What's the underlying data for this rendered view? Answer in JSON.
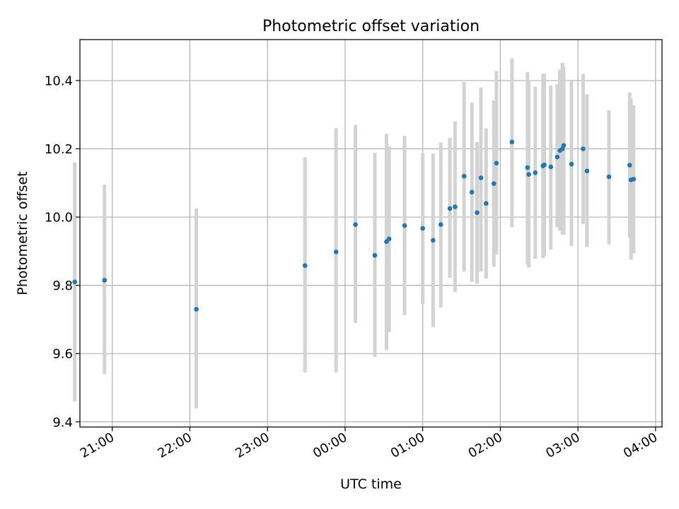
{
  "chart_data": {
    "type": "scatter",
    "title": "Photometric offset variation",
    "xlabel": "UTC time",
    "ylabel": "Photometric offset",
    "x_axis": "time (hours, UTC)",
    "xlim": [
      "20:35",
      "04:05"
    ],
    "ylim": [
      9.385,
      10.52
    ],
    "x_ticks": [
      "21:00",
      "22:00",
      "23:00",
      "00:00",
      "01:00",
      "02:00",
      "03:00",
      "04:00"
    ],
    "y_ticks": [
      "9.4",
      "9.6",
      "9.8",
      "10.0",
      "10.2",
      "10.4"
    ],
    "grid": true,
    "colors": {
      "point": "#1f77b4",
      "errorbar": "#d3d3d3",
      "grid": "#b0b0b0"
    },
    "points": [
      {
        "x": "20:31",
        "y": 9.81,
        "err_low": 9.46,
        "err_high": 10.16
      },
      {
        "x": "20:54",
        "y": 9.815,
        "err_low": 9.54,
        "err_high": 10.095
      },
      {
        "x": "22:05",
        "y": 9.73,
        "err_low": 9.44,
        "err_high": 10.025
      },
      {
        "x": "23:29",
        "y": 9.858,
        "err_low": 9.545,
        "err_high": 10.175
      },
      {
        "x": "23:53",
        "y": 9.898,
        "err_low": 9.545,
        "err_high": 10.26
      },
      {
        "x": "00:08",
        "y": 9.978,
        "err_low": 9.69,
        "err_high": 10.27
      },
      {
        "x": "00:23",
        "y": 9.888,
        "err_low": 9.59,
        "err_high": 10.188
      },
      {
        "x": "00:32",
        "y": 9.928,
        "err_low": 9.61,
        "err_high": 10.244
      },
      {
        "x": "00:34",
        "y": 9.936,
        "err_low": 9.663,
        "err_high": 10.207
      },
      {
        "x": "00:46",
        "y": 9.975,
        "err_low": 9.713,
        "err_high": 10.238
      },
      {
        "x": "01:00",
        "y": 9.967,
        "err_low": 9.745,
        "err_high": 10.187
      },
      {
        "x": "01:08",
        "y": 9.932,
        "err_low": 9.678,
        "err_high": 10.186
      },
      {
        "x": "01:14",
        "y": 9.978,
        "err_low": 9.735,
        "err_high": 10.218
      },
      {
        "x": "01:21",
        "y": 10.025,
        "err_low": 9.822,
        "err_high": 10.232
      },
      {
        "x": "01:25",
        "y": 10.03,
        "err_low": 9.78,
        "err_high": 10.28
      },
      {
        "x": "01:32",
        "y": 10.12,
        "err_low": 9.84,
        "err_high": 10.395
      },
      {
        "x": "01:38",
        "y": 10.073,
        "err_low": 9.81,
        "err_high": 10.335
      },
      {
        "x": "01:42",
        "y": 10.013,
        "err_low": 9.805,
        "err_high": 10.22
      },
      {
        "x": "01:45",
        "y": 10.115,
        "err_low": 9.84,
        "err_high": 10.38
      },
      {
        "x": "01:49",
        "y": 10.04,
        "err_low": 9.82,
        "err_high": 10.26
      },
      {
        "x": "01:55",
        "y": 10.098,
        "err_low": 9.855,
        "err_high": 10.342
      },
      {
        "x": "01:57",
        "y": 10.158,
        "err_low": 9.89,
        "err_high": 10.428
      },
      {
        "x": "02:09",
        "y": 10.22,
        "err_low": 9.97,
        "err_high": 10.465
      },
      {
        "x": "02:21",
        "y": 10.145,
        "err_low": 9.86,
        "err_high": 10.425
      },
      {
        "x": "02:22",
        "y": 10.125,
        "err_low": 9.852,
        "err_high": 10.398
      },
      {
        "x": "02:27",
        "y": 10.13,
        "err_low": 9.878,
        "err_high": 10.382
      },
      {
        "x": "02:33",
        "y": 10.15,
        "err_low": 9.88,
        "err_high": 10.42
      },
      {
        "x": "02:34",
        "y": 10.153,
        "err_low": 9.886,
        "err_high": 10.42
      },
      {
        "x": "02:39",
        "y": 10.147,
        "err_low": 9.905,
        "err_high": 10.385
      },
      {
        "x": "02:44",
        "y": 10.176,
        "err_low": 9.97,
        "err_high": 10.39
      },
      {
        "x": "02:46",
        "y": 10.195,
        "err_low": 9.96,
        "err_high": 10.432
      },
      {
        "x": "02:48",
        "y": 10.2,
        "err_low": 9.95,
        "err_high": 10.452
      },
      {
        "x": "02:49",
        "y": 10.21,
        "err_low": 9.948,
        "err_high": 10.44
      },
      {
        "x": "02:55",
        "y": 10.155,
        "err_low": 9.915,
        "err_high": 10.4
      },
      {
        "x": "03:04",
        "y": 10.2,
        "err_low": 9.98,
        "err_high": 10.42
      },
      {
        "x": "03:07",
        "y": 10.135,
        "err_low": 9.912,
        "err_high": 10.36
      },
      {
        "x": "03:24",
        "y": 10.118,
        "err_low": 9.92,
        "err_high": 10.313
      },
      {
        "x": "03:40",
        "y": 10.152,
        "err_low": 9.94,
        "err_high": 10.365
      },
      {
        "x": "03:41",
        "y": 10.109,
        "err_low": 9.875,
        "err_high": 10.347
      },
      {
        "x": "03:43",
        "y": 10.111,
        "err_low": 9.893,
        "err_high": 10.328
      }
    ]
  }
}
